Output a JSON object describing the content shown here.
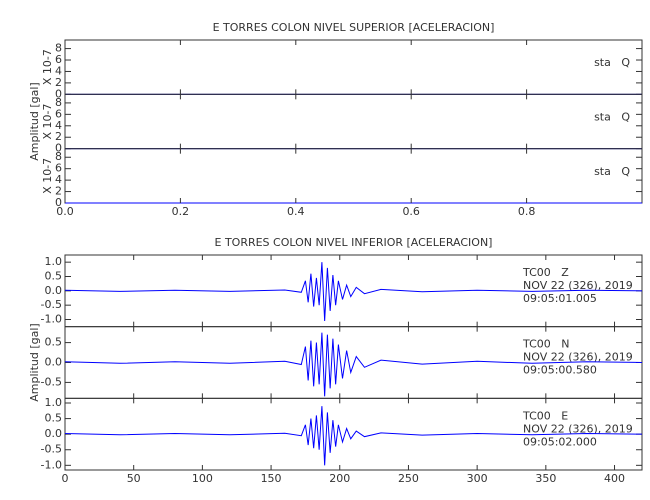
{
  "chart_data": [
    {
      "type": "line",
      "title": "E TORRES COLON NIVEL SUPERIOR [ACELERACION]",
      "ylabel": "Amplitud [gal]",
      "xlim": [
        0,
        1
      ],
      "xticks": [
        {
          "value": 0,
          "label": "0.0"
        },
        0.2,
        0.4,
        0.6,
        0.8
      ],
      "panels": [
        {
          "multiplier": "X 10-7",
          "annotations": [
            "sta   Q"
          ],
          "ylim": [
            0,
            9.5
          ],
          "yticks": [
            0,
            2,
            4,
            6,
            8
          ],
          "series": [
            {
              "color": "#0000ff",
              "x": [
                0,
                1
              ],
              "values": [
                0,
                0
              ]
            }
          ]
        },
        {
          "multiplier": "X 10-7",
          "annotations": [
            "sta   Q"
          ],
          "ylim": [
            0,
            9.5
          ],
          "yticks": [
            0,
            2,
            4,
            6,
            8
          ],
          "series": [
            {
              "color": "#0000ff",
              "x": [
                0,
                1
              ],
              "values": [
                0,
                0
              ]
            }
          ]
        },
        {
          "multiplier": "X 10-7",
          "annotations": [
            "sta   Q"
          ],
          "ylim": [
            0,
            9.5
          ],
          "yticks": [
            0,
            2,
            4,
            6,
            8
          ],
          "series": [
            {
              "color": "#0000ff",
              "x": [
                0,
                1
              ],
              "values": [
                0,
                0
              ]
            }
          ]
        }
      ]
    },
    {
      "type": "line",
      "title": "E TORRES COLON NIVEL INFERIOR [ACELERACION]",
      "ylabel": "Amplitud [gal]",
      "xlim": [
        0,
        420
      ],
      "xticks": [
        0,
        50,
        100,
        150,
        200,
        250,
        300,
        350,
        400
      ],
      "panels": [
        {
          "annotations": [
            "TC00   Z",
            "NOV 22 (326), 2019",
            "09:05:01.005"
          ],
          "ylim": [
            -1.25,
            1.25
          ],
          "yticks": [
            {
              "value": -1,
              "label": "-1.0"
            },
            -0.5,
            {
              "value": 0,
              "label": "0.0"
            },
            0.5,
            {
              "value": 1,
              "label": "1.0"
            }
          ],
          "series": [
            {
              "color": "#0000ff",
              "x": [
                0,
                40,
                80,
                120,
                160,
                172,
                175,
                177,
                179,
                181,
                183,
                185,
                187,
                189,
                191,
                193,
                195,
                197,
                199,
                202,
                205,
                208,
                212,
                218,
                230,
                260,
                300,
                340,
                380,
                420
              ],
              "values": [
                0.02,
                -0.02,
                0.02,
                -0.02,
                0.03,
                -0.05,
                0.35,
                -0.4,
                0.6,
                -0.55,
                0.45,
                -0.5,
                1.0,
                -1.05,
                0.8,
                -0.7,
                0.55,
                -0.5,
                0.35,
                -0.3,
                0.2,
                -0.2,
                0.12,
                -0.1,
                0.05,
                -0.03,
                0.02,
                -0.02,
                0.02,
                0
              ]
            }
          ]
        },
        {
          "annotations": [
            "TC00   N",
            "NOV 22 (326), 2019",
            "09:05:00.580"
          ],
          "ylim": [
            -0.9,
            0.9
          ],
          "yticks": [
            -0.5,
            {
              "value": 0,
              "label": "0.0"
            },
            0.5
          ],
          "series": [
            {
              "color": "#0000ff",
              "x": [
                0,
                40,
                80,
                120,
                160,
                172,
                175,
                177,
                179,
                181,
                183,
                185,
                187,
                189,
                191,
                193,
                195,
                197,
                199,
                202,
                205,
                208,
                212,
                218,
                230,
                260,
                300,
                340,
                380,
                420
              ],
              "values": [
                0.02,
                -0.02,
                0.02,
                -0.02,
                0.03,
                -0.05,
                0.4,
                -0.45,
                0.55,
                -0.6,
                0.5,
                -0.55,
                0.75,
                -0.85,
                0.7,
                -0.65,
                0.6,
                -0.55,
                0.45,
                -0.4,
                0.3,
                -0.25,
                0.15,
                -0.12,
                0.06,
                -0.04,
                0.03,
                -0.02,
                0.02,
                0
              ]
            }
          ]
        },
        {
          "annotations": [
            "TC00   E",
            "NOV 22 (326), 2019",
            "09:05:02.000"
          ],
          "ylim": [
            -1.15,
            1.15
          ],
          "yticks": [
            {
              "value": -1,
              "label": "-1.0"
            },
            -0.5,
            {
              "value": 0,
              "label": "0.0"
            },
            0.5,
            {
              "value": 1,
              "label": "1.0"
            }
          ],
          "series": [
            {
              "color": "#0000ff",
              "x": [
                0,
                40,
                80,
                120,
                160,
                172,
                175,
                177,
                179,
                181,
                183,
                185,
                187,
                189,
                191,
                193,
                195,
                197,
                199,
                202,
                205,
                208,
                212,
                218,
                230,
                260,
                300,
                340,
                380,
                420
              ],
              "values": [
                0.02,
                -0.02,
                0.02,
                -0.02,
                0.03,
                -0.05,
                0.3,
                -0.35,
                0.5,
                -0.45,
                0.6,
                -0.5,
                0.9,
                -1.0,
                0.7,
                -0.6,
                0.45,
                -0.4,
                0.3,
                -0.25,
                0.18,
                -0.15,
                0.1,
                -0.08,
                0.04,
                -0.03,
                0.02,
                -0.02,
                0.02,
                0
              ]
            }
          ]
        }
      ]
    }
  ]
}
